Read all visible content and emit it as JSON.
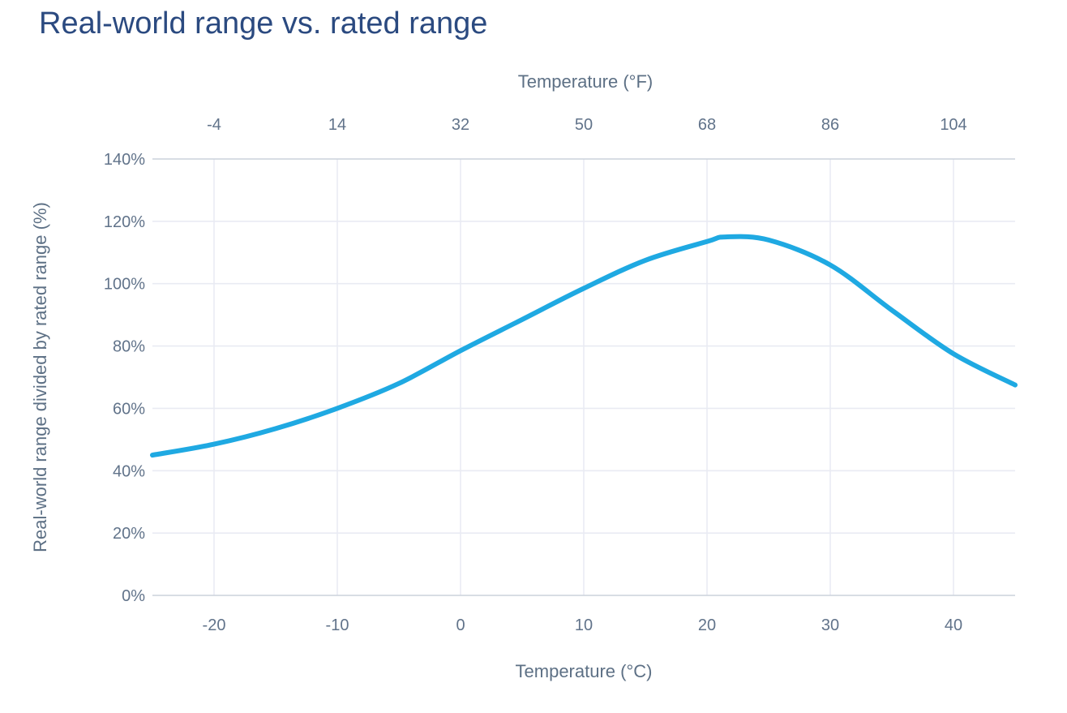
{
  "title": {
    "text": "Real-world range vs. rated range"
  },
  "chart_data": {
    "type": "line",
    "title": "Real-world range vs. rated range",
    "series": [
      {
        "name": "Real-world range divided by rated range",
        "x_celsius": [
          -25,
          -20,
          -15,
          -10,
          -5,
          0,
          5,
          10,
          15,
          20,
          21.5,
          25,
          30,
          35,
          40,
          45
        ],
        "y_percent": [
          45,
          48.5,
          53.5,
          60,
          68,
          78.5,
          88.5,
          98.5,
          107.5,
          113.5,
          115,
          114,
          106,
          91.5,
          77.5,
          67.5
        ]
      }
    ],
    "peak": {
      "x_celsius": 21.5,
      "y_percent": 115
    },
    "x_axis_top": {
      "label": "Temperature (°F)",
      "ticks": [
        -4,
        14,
        32,
        50,
        68,
        86,
        104
      ],
      "range_f": [
        -13,
        113
      ]
    },
    "x_axis_bottom": {
      "label": "Temperature (°C)",
      "ticks": [
        -20,
        -10,
        0,
        10,
        20,
        30,
        40
      ],
      "range_c": [
        -25,
        45
      ]
    },
    "y_axis": {
      "label": "Real-world range divided by rated range (%)",
      "tick_labels": [
        "0%",
        "20%",
        "40%",
        "60%",
        "80%",
        "100%",
        "120%",
        "140%"
      ],
      "tick_values": [
        0,
        20,
        40,
        60,
        80,
        100,
        120,
        140
      ],
      "range": [
        0,
        140
      ]
    },
    "grid": true,
    "legend": "none",
    "style": {
      "line_color": "#1fa9e2",
      "line_width": 6,
      "grid_color": "#e9ebf3",
      "axis_line_color": "#ccd2dc",
      "tick_text_color": "#61738a",
      "axis_title_color": "#5d7085",
      "title_color": "#2b4a80",
      "background": "#ffffff"
    }
  }
}
